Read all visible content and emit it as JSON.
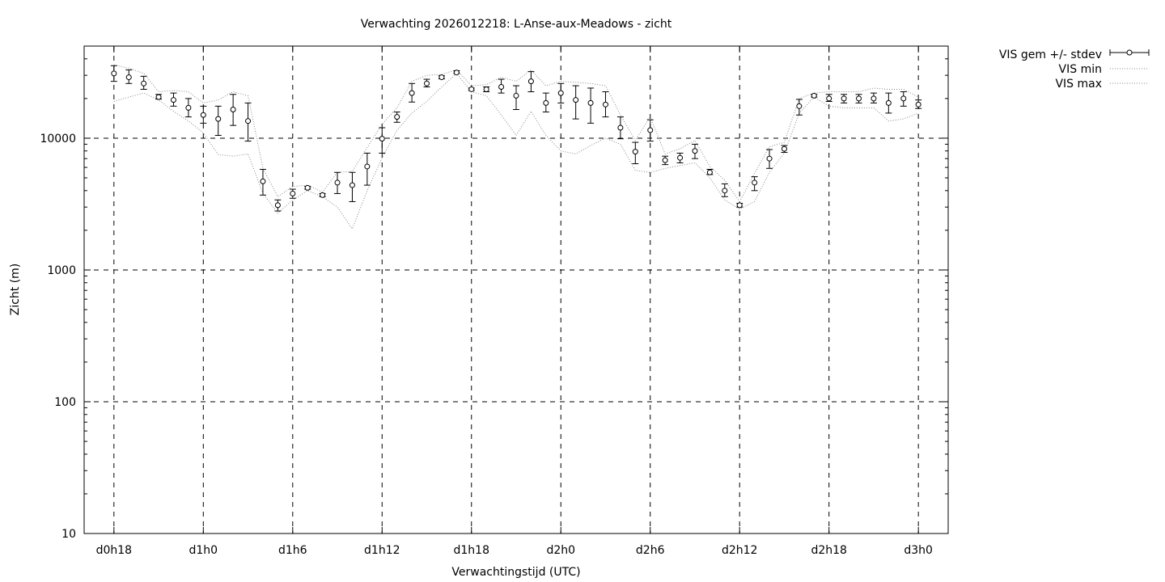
{
  "chart_data": {
    "type": "scatter",
    "title": "Verwachting 2026012218: L-Anse-aux-Meadows - zicht",
    "xlabel": "Verwachtingstijd (UTC)",
    "ylabel": "Zicht (m)",
    "y_scale": "log",
    "ylim": [
      10,
      50000
    ],
    "xlim": [
      -2,
      56
    ],
    "grid": true,
    "legend_position": "outside-top-right",
    "x_ticks": [
      {
        "x": 0,
        "label": "d0h18"
      },
      {
        "x": 6,
        "label": "d1h0"
      },
      {
        "x": 12,
        "label": "d1h6"
      },
      {
        "x": 18,
        "label": "d1h12"
      },
      {
        "x": 24,
        "label": "d1h18"
      },
      {
        "x": 30,
        "label": "d2h0"
      },
      {
        "x": 36,
        "label": "d2h6"
      },
      {
        "x": 42,
        "label": "d2h12"
      },
      {
        "x": 48,
        "label": "d2h18"
      },
      {
        "x": 54,
        "label": "d3h0"
      }
    ],
    "y_ticks": [
      {
        "y": 10,
        "label": "10"
      },
      {
        "y": 100,
        "label": "100"
      },
      {
        "y": 1000,
        "label": "1000"
      },
      {
        "y": 10000,
        "label": "10000"
      }
    ],
    "series": [
      {
        "name": "VIS gem +/- stdev",
        "style": "points-errorbars",
        "color": "#000000",
        "x": [
          0,
          1,
          2,
          3,
          4,
          5,
          6,
          7,
          8,
          9,
          10,
          11,
          12,
          13,
          14,
          15,
          16,
          17,
          18,
          19,
          20,
          21,
          22,
          23,
          24,
          25,
          26,
          27,
          28,
          29,
          30,
          31,
          32,
          33,
          34,
          35,
          36,
          37,
          38,
          39,
          40,
          41,
          42,
          43,
          44,
          45,
          46,
          47,
          48,
          49,
          50,
          51,
          52,
          53,
          54
        ],
        "values": [
          31000,
          29000,
          26000,
          20500,
          19500,
          17000,
          15000,
          14000,
          16500,
          13500,
          4700,
          3100,
          3800,
          4200,
          3700,
          4600,
          4400,
          6100,
          9900,
          14500,
          22000,
          26000,
          29000,
          31500,
          23500,
          23500,
          24500,
          21000,
          27000,
          18500,
          22000,
          19500,
          18500,
          18000,
          12000,
          7900,
          11500,
          6800,
          7100,
          8000,
          5500,
          4000,
          3100,
          4600,
          7000,
          8300,
          17500,
          21000,
          20000,
          20000,
          20000,
          20000,
          18500,
          20000,
          18000
        ],
        "stdev_low": [
          27000,
          26000,
          23500,
          19800,
          17500,
          14500,
          13000,
          10500,
          12500,
          9500,
          3700,
          2800,
          3500,
          4100,
          3600,
          3800,
          3300,
          4400,
          7700,
          13200,
          18800,
          24500,
          28200,
          31000,
          23000,
          22500,
          22000,
          16500,
          22500,
          15800,
          18500,
          14000,
          13000,
          14500,
          9900,
          6400,
          9500,
          6300,
          6500,
          7000,
          5300,
          3600,
          3000,
          4000,
          5900,
          7800,
          15000,
          20500,
          19000,
          18500,
          18500,
          18500,
          15500,
          17500,
          16800
        ],
        "stdev_high": [
          35500,
          33000,
          29500,
          21500,
          22000,
          20000,
          17500,
          17500,
          21500,
          18500,
          5800,
          3400,
          4100,
          4300,
          3800,
          5500,
          5500,
          7700,
          12000,
          15800,
          26000,
          28000,
          29800,
          32500,
          24000,
          24500,
          28000,
          25000,
          32000,
          22000,
          26000,
          25000,
          24000,
          22500,
          14500,
          9300,
          13800,
          7300,
          7700,
          9000,
          5800,
          4500,
          3200,
          5100,
          8200,
          8800,
          19700,
          21500,
          21500,
          21500,
          21500,
          22000,
          22000,
          22500,
          19500
        ]
      },
      {
        "name": "VIS min",
        "style": "dotted",
        "color": "#888888",
        "x": [
          0,
          1,
          2,
          3,
          4,
          5,
          6,
          7,
          8,
          9,
          10,
          11,
          12,
          13,
          14,
          15,
          16,
          17,
          18,
          19,
          20,
          21,
          22,
          23,
          24,
          25,
          26,
          27,
          28,
          29,
          30,
          31,
          32,
          33,
          34,
          35,
          36,
          37,
          38,
          39,
          40,
          41,
          42,
          43,
          44,
          45,
          46,
          47,
          48,
          49,
          50,
          51,
          52,
          53,
          54
        ],
        "values": [
          19000,
          20500,
          22000,
          19500,
          16000,
          13500,
          11000,
          7500,
          7300,
          7600,
          3800,
          2700,
          3400,
          4000,
          3600,
          3000,
          2050,
          4000,
          7100,
          11500,
          15500,
          19000,
          24500,
          31000,
          22500,
          21000,
          15000,
          10500,
          16000,
          10500,
          8000,
          7600,
          8800,
          10000,
          9000,
          5700,
          5500,
          5900,
          6200,
          6500,
          5000,
          3400,
          2900,
          3300,
          5500,
          7700,
          15500,
          20500,
          17500,
          17000,
          17000,
          17000,
          13500,
          14000,
          15500
        ]
      },
      {
        "name": "VIS max",
        "style": "dotted",
        "color": "#888888",
        "x": [
          0,
          1,
          2,
          3,
          4,
          5,
          6,
          7,
          8,
          9,
          10,
          11,
          12,
          13,
          14,
          15,
          16,
          17,
          18,
          19,
          20,
          21,
          22,
          23,
          24,
          25,
          26,
          27,
          28,
          29,
          30,
          31,
          32,
          33,
          34,
          35,
          36,
          37,
          38,
          39,
          40,
          41,
          42,
          43,
          44,
          45,
          46,
          47,
          48,
          49,
          50,
          51,
          52,
          53,
          54
        ],
        "values": [
          36000,
          34000,
          31000,
          22500,
          23000,
          22500,
          18500,
          19500,
          22500,
          21000,
          5900,
          3600,
          4300,
          4400,
          3900,
          5500,
          5600,
          8500,
          12800,
          17000,
          27000,
          30000,
          30500,
          33000,
          25000,
          25500,
          29000,
          27000,
          33000,
          25000,
          27000,
          26500,
          26000,
          25000,
          15000,
          9600,
          14500,
          7600,
          8300,
          9600,
          6100,
          4800,
          3300,
          5400,
          8600,
          9300,
          20000,
          22000,
          22500,
          22500,
          22500,
          24000,
          23500,
          23500,
          20500
        ]
      }
    ]
  }
}
